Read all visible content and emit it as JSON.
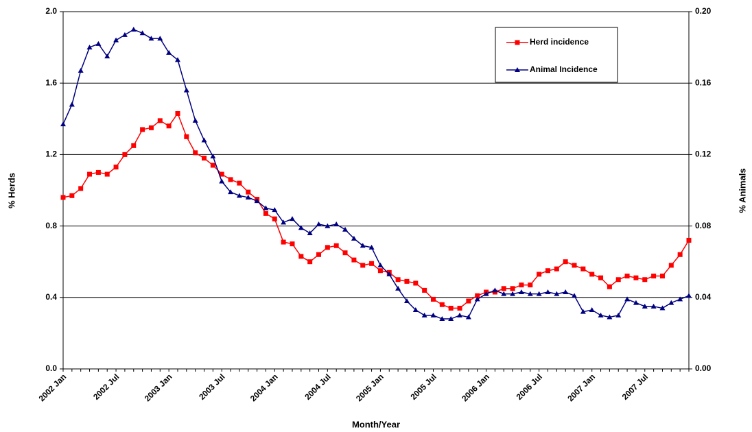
{
  "chart_data": {
    "type": "line",
    "xlabel": "Month/Year",
    "ylabel": "% Herds",
    "y2label": "% Animals",
    "categories": [
      "2002 Jan",
      null,
      null,
      null,
      null,
      null,
      "2002 Jul",
      null,
      null,
      null,
      null,
      null,
      "2003 Jan",
      null,
      null,
      null,
      null,
      null,
      "2003 Jul",
      null,
      null,
      null,
      null,
      null,
      "2004 Jan",
      null,
      null,
      null,
      null,
      null,
      "2004 Jul",
      null,
      null,
      null,
      null,
      null,
      "2005 Jan",
      null,
      null,
      null,
      null,
      null,
      "2005 Jul",
      null,
      null,
      null,
      null,
      null,
      "2006 Jan",
      null,
      null,
      null,
      null,
      null,
      "2006 Jul",
      null,
      null,
      null,
      null,
      null,
      "2007 Jan",
      null,
      null,
      null,
      null,
      null,
      "2007 Jul",
      null,
      null,
      null,
      null,
      null
    ],
    "ylim": [
      0,
      2.0
    ],
    "yticks": [
      {
        "value": 0,
        "label": "0.0"
      },
      0.4,
      0.8,
      1.2,
      1.6,
      {
        "value": 2,
        "label": "2.0"
      }
    ],
    "y2lim": [
      0,
      0.2
    ],
    "y2ticks": [
      {
        "value": 0,
        "label": "0.00"
      },
      {
        "value": 0.04,
        "label": "0.04"
      },
      {
        "value": 0.08,
        "label": "0.08"
      },
      {
        "value": 0.12,
        "label": "0.12"
      },
      {
        "value": 0.16,
        "label": "0.16"
      },
      {
        "value": 0.2,
        "label": "0.20"
      }
    ],
    "grid": true,
    "series": [
      {
        "name": "Herd incidence",
        "color": "#ff0000",
        "marker": "square",
        "values": [
          0.96,
          0.97,
          1.01,
          1.09,
          1.1,
          1.09,
          1.13,
          1.2,
          1.25,
          1.34,
          1.35,
          1.39,
          1.36,
          1.43,
          1.3,
          1.21,
          1.18,
          1.14,
          1.09,
          1.06,
          1.04,
          0.99,
          0.95,
          0.87,
          0.84,
          0.71,
          0.7,
          0.63,
          0.6,
          0.64,
          0.68,
          0.69,
          0.65,
          0.61,
          0.58,
          0.59,
          0.55,
          0.54,
          0.5,
          0.49,
          0.48,
          0.44,
          0.39,
          0.36,
          0.34,
          0.34,
          0.38,
          0.41,
          0.43,
          0.43,
          0.45,
          0.45,
          0.47,
          0.47,
          0.53,
          0.55,
          0.56,
          0.6,
          0.58,
          0.56,
          0.53,
          0.51,
          0.46,
          0.5,
          0.52,
          0.51,
          0.5,
          0.52,
          0.52,
          0.58,
          0.64,
          0.72
        ]
      },
      {
        "name": "Animal Incidence",
        "color": "#000080",
        "marker": "triangle",
        "axis": "y2",
        "values": [
          0.137,
          0.148,
          0.167,
          0.18,
          0.182,
          0.175,
          0.184,
          0.187,
          0.19,
          0.188,
          0.185,
          0.185,
          0.177,
          0.173,
          0.156,
          0.139,
          0.128,
          0.119,
          0.105,
          0.099,
          0.097,
          0.096,
          0.094,
          0.09,
          0.089,
          0.082,
          0.084,
          0.079,
          0.076,
          0.081,
          0.08,
          0.081,
          0.078,
          0.073,
          0.069,
          0.068,
          0.058,
          0.053,
          0.045,
          0.038,
          0.033,
          0.03,
          0.03,
          0.028,
          0.028,
          0.03,
          0.029,
          0.039,
          0.042,
          0.044,
          0.042,
          0.042,
          0.043,
          0.042,
          0.042,
          0.043,
          0.042,
          0.043,
          0.041,
          0.032,
          0.033,
          0.03,
          0.029,
          0.03,
          0.039,
          0.037,
          0.035,
          0.035,
          0.034,
          0.037,
          0.039,
          0.041
        ]
      }
    ]
  }
}
